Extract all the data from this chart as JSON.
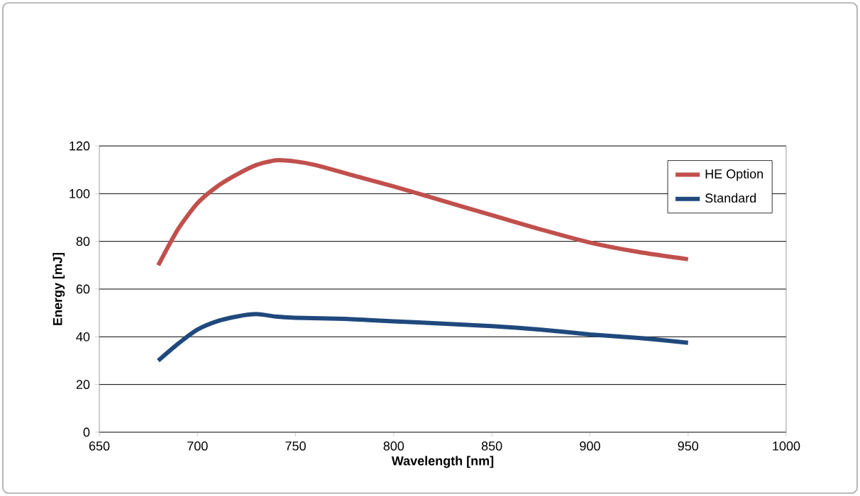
{
  "chart_data": {
    "type": "line",
    "xlabel": "Wavelength  [nm]",
    "ylabel": "Energy [mJ]",
    "xlim": [
      650,
      1000
    ],
    "xticks": [
      650,
      700,
      750,
      800,
      850,
      900,
      950,
      1000
    ],
    "ylim": [
      0,
      120
    ],
    "yticks": [
      0,
      20,
      40,
      60,
      80,
      100,
      120
    ],
    "grid": "y",
    "legend": "top right",
    "marker": "none",
    "line_style": "solid",
    "series": [
      {
        "name": "HE Option",
        "color": "#c0504d",
        "x": [
          680,
          690,
          700,
          710,
          720,
          730,
          740,
          750,
          760,
          780,
          800,
          825,
          850,
          875,
          900,
          925,
          950
        ],
        "values": [
          70,
          85,
          96,
          103,
          108,
          112,
          114,
          113.5,
          112,
          107.5,
          103,
          97,
          91,
          85,
          79.5,
          75.5,
          72.5
        ]
      },
      {
        "name": "Standard",
        "color": "#1f497d",
        "x": [
          680,
          690,
          700,
          710,
          720,
          730,
          740,
          750,
          775,
          800,
          825,
          850,
          875,
          900,
          925,
          950
        ],
        "values": [
          30,
          37,
          43,
          46.5,
          48.5,
          49.5,
          48.5,
          48,
          47.5,
          46.5,
          45.5,
          44.5,
          43,
          41,
          39.5,
          37.5
        ]
      }
    ]
  }
}
